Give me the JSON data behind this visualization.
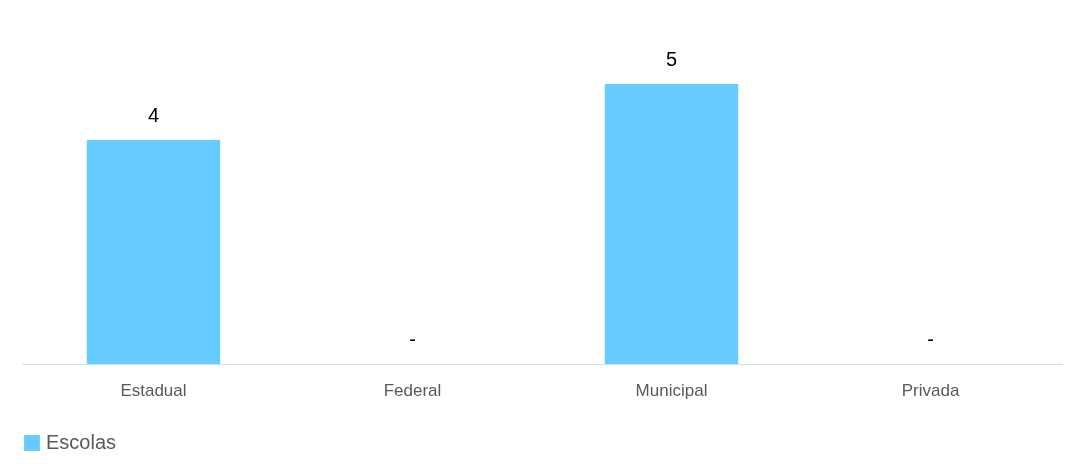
{
  "chart_data": {
    "type": "bar",
    "categories": [
      "Estadual",
      "Federal",
      "Municipal",
      "Privada"
    ],
    "series": [
      {
        "name": "Escolas",
        "color": "#66ccff",
        "values": [
          4,
          0,
          5,
          0
        ],
        "value_labels": [
          "4",
          "-",
          "5",
          "-"
        ]
      }
    ],
    "legend": "bottom",
    "grid": false
  }
}
